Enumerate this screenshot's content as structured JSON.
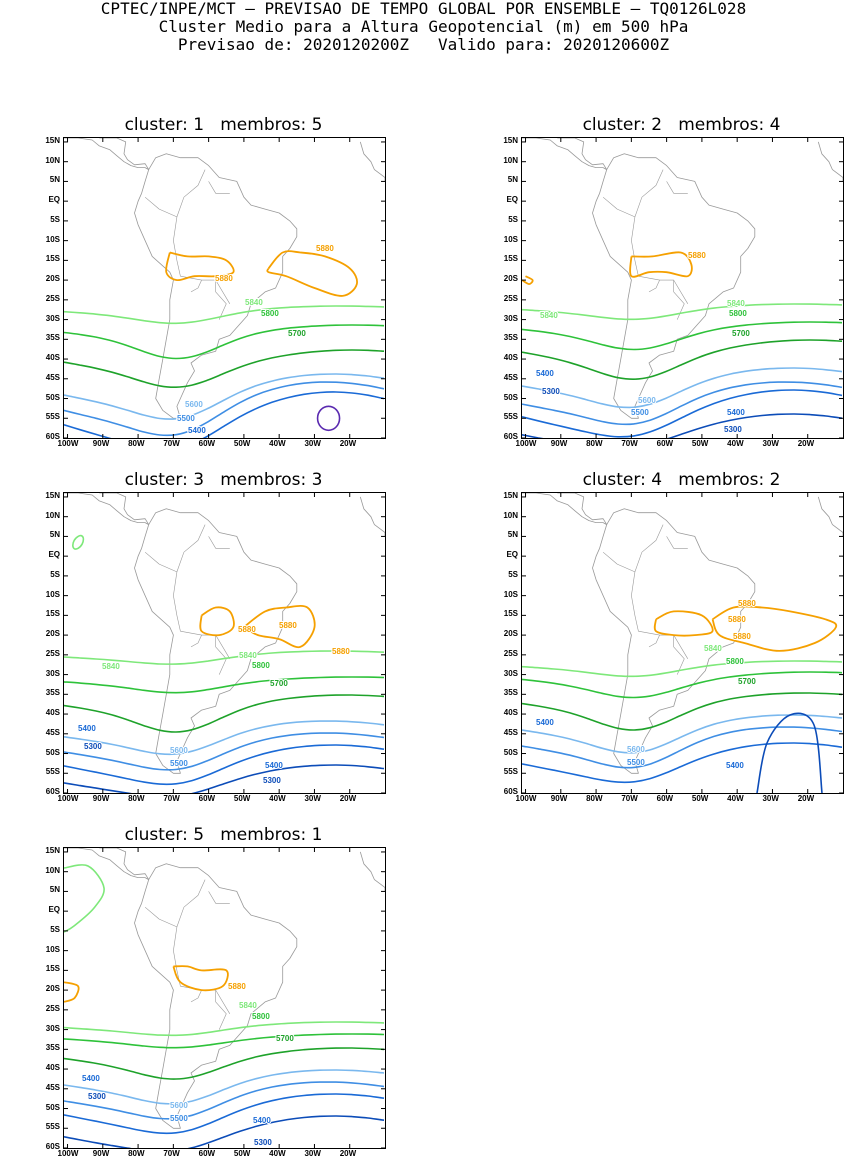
{
  "header": {
    "line1": "CPTEC/INPE/MCT – PREVISAO DE TEMPO GLOBAL POR ENSEMBLE – TQ0126L028",
    "line2": "Cluster Medio para a Altura Geopotencial (m) em 500 hPa",
    "line3": "Previsao de: 2020120200Z   Valido para: 2020120600Z"
  },
  "axes": {
    "lat_labels": [
      "15N",
      "10N",
      "5N",
      "EQ",
      "5S",
      "10S",
      "15S",
      "20S",
      "25S",
      "30S",
      "35S",
      "40S",
      "45S",
      "50S",
      "55S",
      "60S"
    ],
    "lon_labels": [
      "100W",
      "90W",
      "80W",
      "70W",
      "60W",
      "50W",
      "40W",
      "30W",
      "20W"
    ]
  },
  "colors": {
    "c5880": "#f5a000",
    "c5840": "#7ee87a",
    "c5800": "#2ec23a",
    "c5700": "#1ea22a",
    "c5600": "#7ab8ee",
    "c5500": "#3f8ee4",
    "c5400": "#1a6ad6",
    "c5300": "#0c4cb8",
    "c5200": "#5a2ab0",
    "land": "#999999"
  },
  "panels": [
    {
      "title": "cluster: 1   membros: 5",
      "labels": [
        {
          "text": "5880",
          "c": "c5880"
        },
        {
          "text": "5880",
          "c": "c5880"
        },
        {
          "text": "5840",
          "c": "c5840"
        },
        {
          "text": "5800",
          "c": "c5800"
        },
        {
          "text": "5700",
          "c": "c5700"
        },
        {
          "text": "5600",
          "c": "c5600"
        },
        {
          "text": "5500",
          "c": "c5500"
        },
        {
          "text": "5400",
          "c": "c5400"
        }
      ]
    },
    {
      "title": "cluster: 2   membros: 4",
      "labels": [
        {
          "text": "5880",
          "c": "c5880"
        },
        {
          "text": "5840",
          "c": "c5840"
        },
        {
          "text": "5840",
          "c": "c5840"
        },
        {
          "text": "5800",
          "c": "c5800"
        },
        {
          "text": "5700",
          "c": "c5700"
        },
        {
          "text": "5400",
          "c": "c5400"
        },
        {
          "text": "5300",
          "c": "c5300"
        },
        {
          "text": "5600",
          "c": "c5600"
        },
        {
          "text": "5500",
          "c": "c5500"
        },
        {
          "text": "5400",
          "c": "c5400"
        },
        {
          "text": "5300",
          "c": "c5300"
        }
      ]
    },
    {
      "title": "cluster: 3   membros: 3",
      "labels": [
        {
          "text": "5880",
          "c": "c5880"
        },
        {
          "text": "5880",
          "c": "c5880"
        },
        {
          "text": "5880",
          "c": "c5880"
        },
        {
          "text": "5840",
          "c": "c5840"
        },
        {
          "text": "5840",
          "c": "c5840"
        },
        {
          "text": "5800",
          "c": "c5800"
        },
        {
          "text": "5700",
          "c": "c5700"
        },
        {
          "text": "5400",
          "c": "c5400"
        },
        {
          "text": "5300",
          "c": "c5300"
        },
        {
          "text": "5600",
          "c": "c5600"
        },
        {
          "text": "5500",
          "c": "c5500"
        },
        {
          "text": "5400",
          "c": "c5400"
        },
        {
          "text": "5300",
          "c": "c5300"
        }
      ]
    },
    {
      "title": "cluster: 4   membros: 2",
      "labels": [
        {
          "text": "5880",
          "c": "c5880"
        },
        {
          "text": "5880",
          "c": "c5880"
        },
        {
          "text": "5880",
          "c": "c5880"
        },
        {
          "text": "5840",
          "c": "c5840"
        },
        {
          "text": "5800",
          "c": "c5800"
        },
        {
          "text": "5700",
          "c": "c5700"
        },
        {
          "text": "5400",
          "c": "c5400"
        },
        {
          "text": "5600",
          "c": "c5600"
        },
        {
          "text": "5500",
          "c": "c5500"
        },
        {
          "text": "5400",
          "c": "c5400"
        }
      ]
    },
    {
      "title": "cluster: 5   membros: 1",
      "labels": [
        {
          "text": "5880",
          "c": "c5880"
        },
        {
          "text": "5840",
          "c": "c5840"
        },
        {
          "text": "5800",
          "c": "c5800"
        },
        {
          "text": "5700",
          "c": "c5700"
        },
        {
          "text": "5400",
          "c": "c5400"
        },
        {
          "text": "5300",
          "c": "c5300"
        },
        {
          "text": "5600",
          "c": "c5600"
        },
        {
          "text": "5500",
          "c": "c5500"
        },
        {
          "text": "5400",
          "c": "c5400"
        },
        {
          "text": "5300",
          "c": "c5300"
        }
      ]
    }
  ]
}
